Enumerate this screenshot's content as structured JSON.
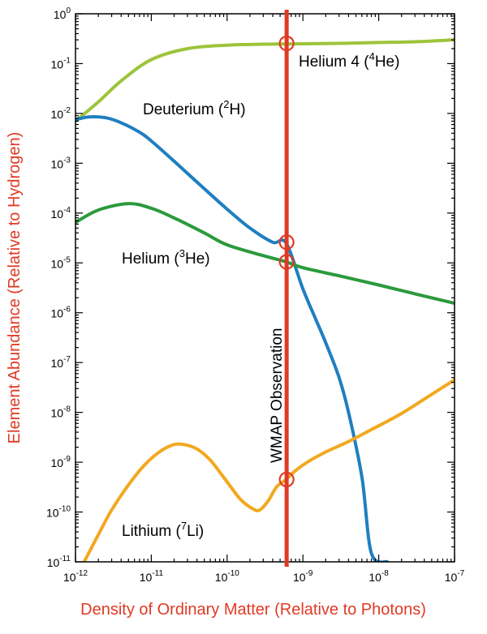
{
  "chart_data": {
    "type": "line",
    "xlabel": "Density of Ordinary Matter (Relative to Photons)",
    "ylabel": "Element Abundance (Relative to Hydrogen)",
    "x_scale": "log",
    "y_scale": "log",
    "xlim": [
      1e-12,
      1e-07
    ],
    "ylim": [
      1e-11,
      1
    ],
    "x_ticks": [
      {
        "base": "10",
        "exp": "-12",
        "value": 1e-12
      },
      {
        "base": "10",
        "exp": "-11",
        "value": 1e-11
      },
      {
        "base": "10",
        "exp": "-10",
        "value": 1e-10
      },
      {
        "base": "10",
        "exp": "-9",
        "value": 1e-09
      },
      {
        "base": "10",
        "exp": "-8",
        "value": 1e-08
      },
      {
        "base": "10",
        "exp": "-7",
        "value": 1e-07
      }
    ],
    "y_ticks": [
      {
        "base": "10",
        "exp": "0",
        "value": 1
      },
      {
        "base": "10",
        "exp": "-1",
        "value": 0.1
      },
      {
        "base": "10",
        "exp": "-2",
        "value": 0.01
      },
      {
        "base": "10",
        "exp": "-3",
        "value": 0.001
      },
      {
        "base": "10",
        "exp": "-4",
        "value": 0.0001
      },
      {
        "base": "10",
        "exp": "-5",
        "value": 1e-05
      },
      {
        "base": "10",
        "exp": "-6",
        "value": 1e-06
      },
      {
        "base": "10",
        "exp": "-7",
        "value": 1e-07
      },
      {
        "base": "10",
        "exp": "-8",
        "value": 1e-08
      },
      {
        "base": "10",
        "exp": "-9",
        "value": 1e-09
      },
      {
        "base": "10",
        "exp": "-10",
        "value": 1e-10
      },
      {
        "base": "10",
        "exp": "-11",
        "value": 1e-11
      }
    ],
    "series": [
      {
        "id": "he4",
        "label_pre": "Helium 4 (",
        "label_sup": "4",
        "label_post": "He)",
        "color": "#9dc43b",
        "x": [
          1e-12,
          2e-12,
          4e-12,
          1e-11,
          3e-11,
          1e-10,
          3e-10,
          6e-10,
          1e-09,
          3e-09,
          1e-08,
          3e-08,
          1e-07
        ],
        "y": [
          0.007,
          0.017,
          0.045,
          0.12,
          0.2,
          0.235,
          0.245,
          0.248,
          0.25,
          0.255,
          0.265,
          0.275,
          0.3
        ]
      },
      {
        "id": "deuterium",
        "label_pre": "Deuterium (",
        "label_sup": "2",
        "label_post": "H)",
        "color": "#1f7fc0",
        "x": [
          1e-12,
          1.5e-12,
          2.5e-12,
          4e-12,
          7e-12,
          1e-11,
          2e-11,
          4e-11,
          1e-10,
          2e-10,
          4e-10,
          6e-10,
          1e-09,
          1.5e-09,
          2e-09,
          3e-09,
          4e-09,
          6e-09,
          8e-09,
          1.3e-08
        ],
        "y": [
          0.0075,
          0.0085,
          0.0082,
          0.0065,
          0.0042,
          0.0028,
          0.0011,
          0.00042,
          0.00012,
          5e-05,
          2.6e-05,
          2.5e-05,
          3e-06,
          7e-07,
          2.5e-07,
          5e-08,
          1e-08,
          5e-10,
          1.5e-11,
          1e-11
        ]
      },
      {
        "id": "he3",
        "label_pre": "Helium (",
        "label_sup": "3",
        "label_post": "He)",
        "color": "#2b9a3c",
        "x": [
          1e-12,
          2e-12,
          5e-12,
          1e-11,
          2e-11,
          5e-11,
          1e-10,
          3e-10,
          6e-10,
          1e-09,
          3e-09,
          1e-08,
          3e-08,
          1e-07
        ],
        "y": [
          6.5e-05,
          0.000115,
          0.000155,
          0.000125,
          8e-05,
          4e-05,
          2.3e-05,
          1.4e-05,
          1.05e-05,
          8e-06,
          5.5e-06,
          3.6e-06,
          2.4e-06,
          1.55e-06
        ]
      },
      {
        "id": "lithium",
        "label_pre": "Lithium (",
        "label_sup": "7",
        "label_post": "Li)",
        "color": "#f2a820",
        "x": [
          1.3e-12,
          2e-12,
          3e-12,
          5e-12,
          8e-12,
          1.2e-11,
          1.8e-11,
          2.5e-11,
          4e-11,
          6e-11,
          9e-11,
          1.5e-10,
          2.2e-10,
          2.7e-10,
          3.5e-10,
          4.5e-10,
          6e-10,
          8e-10,
          1.2e-09,
          2e-09,
          4e-09,
          8e-09,
          2e-08,
          5e-08,
          1e-07
        ],
        "y": [
          1e-11,
          3.5e-11,
          1.1e-10,
          3.5e-10,
          8.5e-10,
          1.5e-09,
          2.15e-09,
          2.3e-09,
          1.85e-09,
          1.1e-09,
          5e-10,
          1.8e-10,
          1.15e-10,
          1.1e-10,
          1.7e-10,
          3.2e-10,
          4.5e-10,
          6.8e-10,
          1.05e-09,
          1.6e-09,
          2.6e-09,
          4.5e-09,
          9.5e-09,
          2.3e-08,
          4.5e-08
        ]
      }
    ],
    "observation": {
      "label": "WMAP Observation",
      "x": 6.1e-10,
      "color": "#e03a24",
      "markers": [
        {
          "series": "he4",
          "y": 0.255
        },
        {
          "series": "deuterium",
          "y": 2.6e-05
        },
        {
          "series": "he3",
          "y": 1.05e-05
        },
        {
          "series": "lithium",
          "y": 4.5e-10
        }
      ]
    }
  }
}
